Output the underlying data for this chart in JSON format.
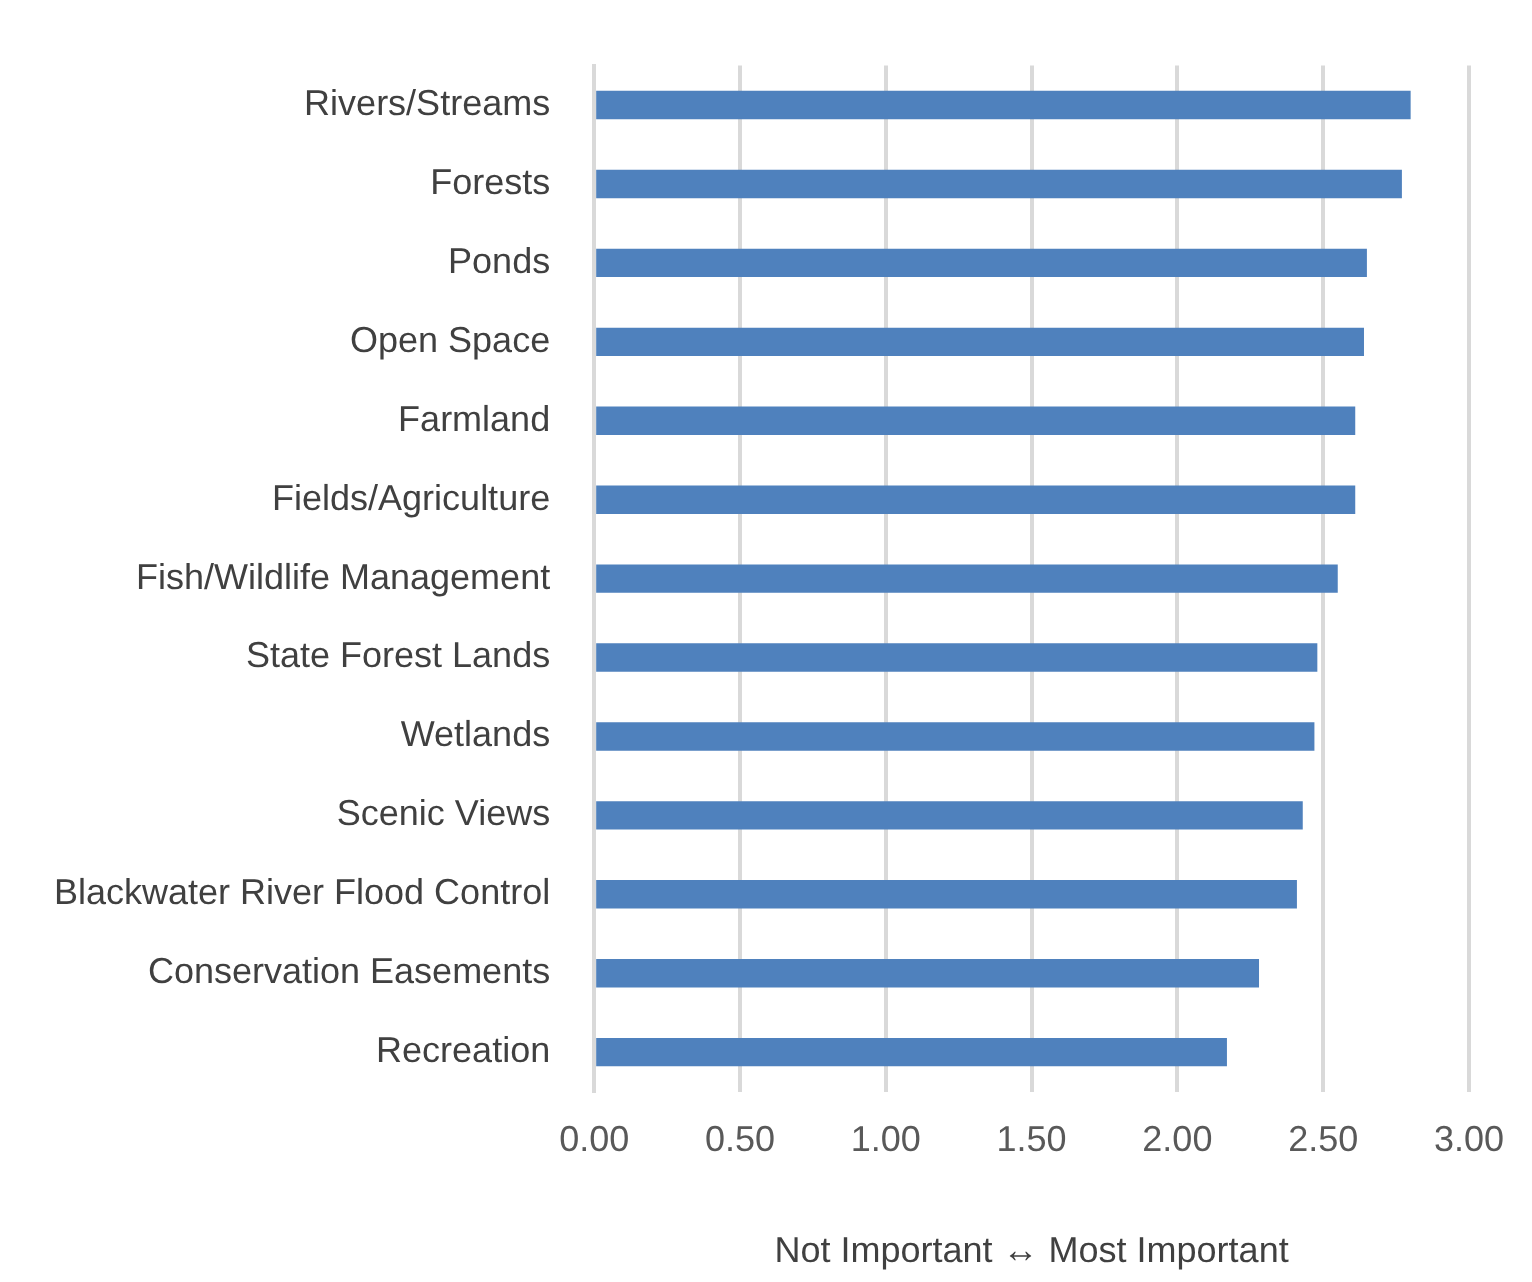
{
  "chart_data": {
    "type": "bar",
    "orientation": "horizontal",
    "xlabel": "Not Important ↔ Most Important",
    "categories": [
      "Rivers/Streams",
      "Forests",
      "Ponds",
      "Open Space",
      "Farmland",
      "Fields/Agriculture",
      "Fish/Wildlife Management",
      "State Forest Lands",
      "Wetlands",
      "Scenic Views",
      "Blackwater River Flood Control",
      "Conservation Easements",
      "Recreation"
    ],
    "values": [
      2.8,
      2.77,
      2.65,
      2.64,
      2.61,
      2.61,
      2.55,
      2.48,
      2.47,
      2.43,
      2.41,
      2.28,
      2.17
    ],
    "color": "#4f81bd",
    "xlim": [
      0,
      3
    ],
    "xticks": [
      {
        "value": 0,
        "label": "0.00"
      },
      {
        "value": 0.5,
        "label": "0.50"
      },
      {
        "value": 1,
        "label": "1.00"
      },
      {
        "value": 1.5,
        "label": "1.50"
      },
      {
        "value": 2,
        "label": "2.00"
      },
      {
        "value": 2.5,
        "label": "2.50"
      },
      {
        "value": 3,
        "label": "3.00"
      }
    ],
    "grid": "x",
    "legend": false
  }
}
